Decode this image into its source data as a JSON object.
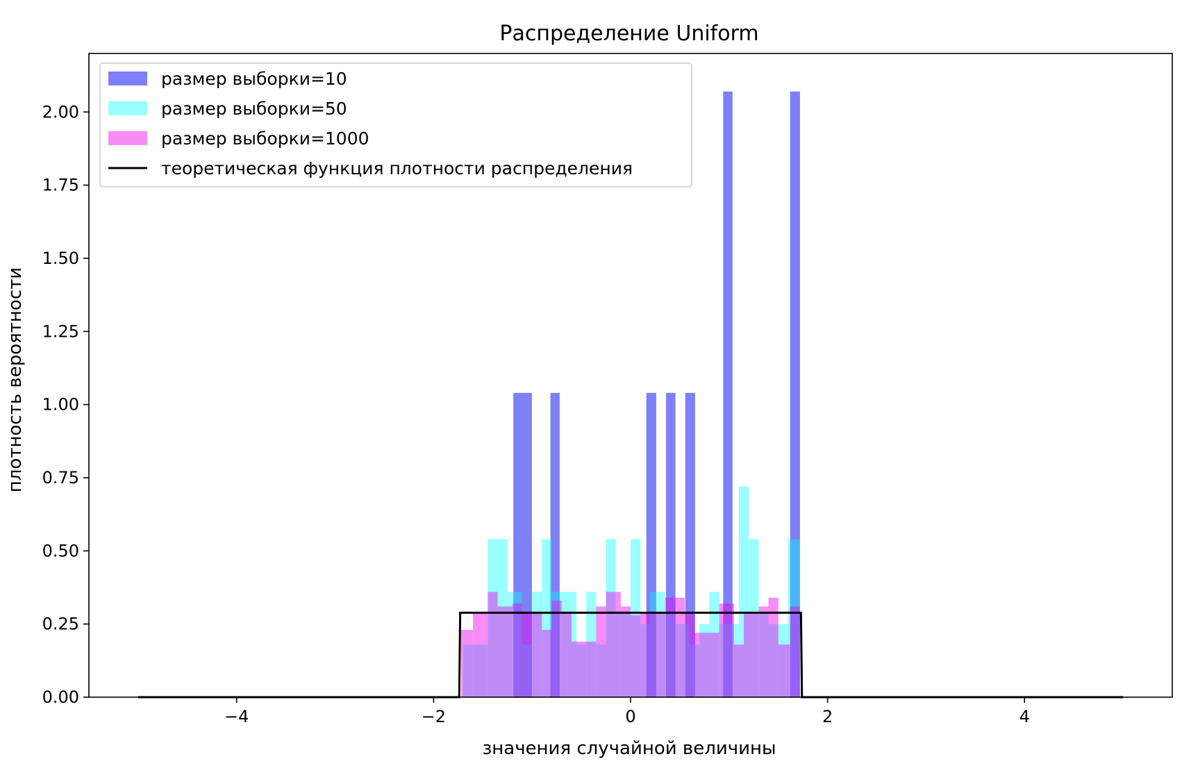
{
  "chart_data": {
    "type": "bar",
    "title": "Распределение Uniform",
    "xlabel": "значения случайной величины",
    "ylabel": "плотность вероятности",
    "xlim": [
      -5.5,
      5.5
    ],
    "ylim": [
      0,
      2.2
    ],
    "xticks": [
      -4,
      -2,
      0,
      2,
      4
    ],
    "xtick_labels": [
      "−4",
      "−2",
      "0",
      "2",
      "4"
    ],
    "yticks": [
      0,
      0.25,
      0.5,
      0.75,
      1.0,
      1.25,
      1.5,
      1.75,
      2.0
    ],
    "ytick_labels": [
      "0.00",
      "0.25",
      "0.50",
      "0.75",
      "1.00",
      "1.25",
      "1.50",
      "1.75",
      "2.00"
    ],
    "grid": false,
    "legend_position": "top-left",
    "series": [
      {
        "name": "размер выборки=10",
        "kind": "histogram",
        "color": "#0000ee",
        "opacity": 0.5,
        "bins": [
          {
            "x0": -1.19,
            "x1": -1.096,
            "y": 1.04
          },
          {
            "x0": -1.096,
            "x1": -1.002,
            "y": 1.04
          },
          {
            "x0": -0.814,
            "x1": -0.72,
            "y": 1.04
          },
          {
            "x0": 0.16,
            "x1": 0.26,
            "y": 1.04
          },
          {
            "x0": 0.36,
            "x1": 0.455,
            "y": 1.04
          },
          {
            "x0": 0.555,
            "x1": 0.655,
            "y": 1.04
          },
          {
            "x0": 0.94,
            "x1": 1.035,
            "y": 2.07
          },
          {
            "x0": 1.62,
            "x1": 1.72,
            "y": 2.07
          }
        ]
      },
      {
        "name": "размер выборки=50",
        "kind": "histogram",
        "color": "#00ffff",
        "opacity": 0.4,
        "bins": [
          {
            "x0": -1.7,
            "x1": -1.6,
            "y": 0.18
          },
          {
            "x0": -1.6,
            "x1": -1.45,
            "y": 0.18
          },
          {
            "x0": -1.45,
            "x1": -1.25,
            "y": 0.54
          },
          {
            "x0": -1.25,
            "x1": -1.1,
            "y": 0.36
          },
          {
            "x0": -1.1,
            "x1": -1.0,
            "y": 0.18
          },
          {
            "x0": -1.0,
            "x1": -0.9,
            "y": 0.36
          },
          {
            "x0": -0.9,
            "x1": -0.8,
            "y": 0.54
          },
          {
            "x0": -0.8,
            "x1": -0.7,
            "y": 0.36
          },
          {
            "x0": -0.7,
            "x1": -0.55,
            "y": 0.36
          },
          {
            "x0": -0.55,
            "x1": -0.45,
            "y": 0.18
          },
          {
            "x0": -0.45,
            "x1": -0.35,
            "y": 0.36
          },
          {
            "x0": -0.35,
            "x1": -0.25,
            "y": 0.18
          },
          {
            "x0": -0.25,
            "x1": -0.15,
            "y": 0.54
          },
          {
            "x0": -0.15,
            "x1": 0.0,
            "y": 0.29
          },
          {
            "x0": 0.0,
            "x1": 0.1,
            "y": 0.54
          },
          {
            "x0": 0.1,
            "x1": 0.2,
            "y": 0.25
          },
          {
            "x0": 0.2,
            "x1": 0.35,
            "y": 0.36
          },
          {
            "x0": 0.35,
            "x1": 0.45,
            "y": 0.29
          },
          {
            "x0": 0.45,
            "x1": 0.6,
            "y": 0.25
          },
          {
            "x0": 0.6,
            "x1": 0.7,
            "y": 0.18
          },
          {
            "x0": 0.7,
            "x1": 0.8,
            "y": 0.25
          },
          {
            "x0": 0.8,
            "x1": 0.9,
            "y": 0.36
          },
          {
            "x0": 0.9,
            "x1": 1.1,
            "y": 0.25
          },
          {
            "x0": 1.1,
            "x1": 1.2,
            "y": 0.72
          },
          {
            "x0": 1.2,
            "x1": 1.3,
            "y": 0.54
          },
          {
            "x0": 1.3,
            "x1": 1.4,
            "y": 0.29
          },
          {
            "x0": 1.4,
            "x1": 1.6,
            "y": 0.25
          },
          {
            "x0": 1.6,
            "x1": 1.72,
            "y": 0.54
          }
        ]
      },
      {
        "name": "размер выборки=1000",
        "kind": "histogram",
        "color": "#ee00ee",
        "opacity": 0.45,
        "bins": [
          {
            "x0": -1.72,
            "x1": -1.6,
            "y": 0.23
          },
          {
            "x0": -1.6,
            "x1": -1.45,
            "y": 0.29
          },
          {
            "x0": -1.45,
            "x1": -1.35,
            "y": 0.36
          },
          {
            "x0": -1.35,
            "x1": -1.2,
            "y": 0.31
          },
          {
            "x0": -1.2,
            "x1": -1.1,
            "y": 0.32
          },
          {
            "x0": -1.1,
            "x1": -1.0,
            "y": 0.29
          },
          {
            "x0": -1.0,
            "x1": -0.9,
            "y": 0.29
          },
          {
            "x0": -0.9,
            "x1": -0.8,
            "y": 0.23
          },
          {
            "x0": -0.8,
            "x1": -0.7,
            "y": 0.33
          },
          {
            "x0": -0.7,
            "x1": -0.6,
            "y": 0.29
          },
          {
            "x0": -0.6,
            "x1": -0.45,
            "y": 0.19
          },
          {
            "x0": -0.45,
            "x1": -0.35,
            "y": 0.19
          },
          {
            "x0": -0.35,
            "x1": -0.25,
            "y": 0.31
          },
          {
            "x0": -0.25,
            "x1": -0.1,
            "y": 0.36
          },
          {
            "x0": -0.1,
            "x1": 0.0,
            "y": 0.31
          },
          {
            "x0": 0.0,
            "x1": 0.1,
            "y": 0.28
          },
          {
            "x0": 0.1,
            "x1": 0.25,
            "y": 0.29
          },
          {
            "x0": 0.25,
            "x1": 0.35,
            "y": 0.29
          },
          {
            "x0": 0.35,
            "x1": 0.55,
            "y": 0.34
          },
          {
            "x0": 0.55,
            "x1": 0.65,
            "y": 0.29
          },
          {
            "x0": 0.65,
            "x1": 0.8,
            "y": 0.22
          },
          {
            "x0": 0.8,
            "x1": 0.9,
            "y": 0.22
          },
          {
            "x0": 0.9,
            "x1": 1.05,
            "y": 0.32
          },
          {
            "x0": 1.05,
            "x1": 1.15,
            "y": 0.18
          },
          {
            "x0": 1.15,
            "x1": 1.3,
            "y": 0.29
          },
          {
            "x0": 1.3,
            "x1": 1.4,
            "y": 0.31
          },
          {
            "x0": 1.4,
            "x1": 1.5,
            "y": 0.34
          },
          {
            "x0": 1.5,
            "x1": 1.62,
            "y": 0.18
          },
          {
            "x0": 1.62,
            "x1": 1.72,
            "y": 0.31
          }
        ]
      },
      {
        "name": "теоретическая функция плотности распределения",
        "kind": "line",
        "color": "#000000",
        "x": [
          -5.0,
          -1.74,
          -1.73,
          1.73,
          1.74,
          5.0
        ],
        "y": [
          0.0,
          0.0,
          0.2887,
          0.2887,
          0.0,
          0.0
        ]
      }
    ]
  }
}
